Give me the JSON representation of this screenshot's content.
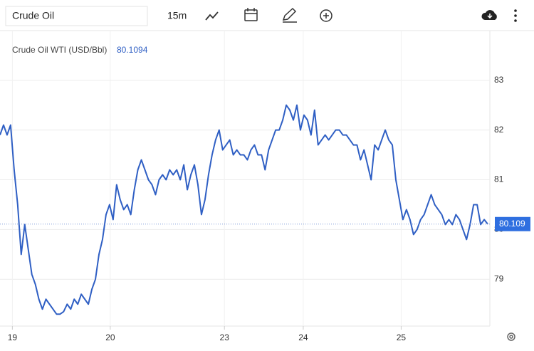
{
  "chart_data": {
    "type": "line",
    "search_text": "Crude Oil",
    "interval": "15m",
    "title": "Crude Oil WTI (USD/Bbl)",
    "price": 80.1094,
    "price_tag": {
      "value": 80.1094,
      "label": "80.109"
    },
    "series": [
      {
        "name": "Crude Oil WTI (USD/Bbl)",
        "color": "#2f5fc4",
        "values": [
          81.9,
          82.1,
          81.9,
          82.1,
          81.2,
          80.5,
          79.5,
          80.1,
          79.6,
          79.1,
          78.9,
          78.6,
          78.4,
          78.6,
          78.5,
          78.4,
          78.3,
          78.3,
          78.35,
          78.5,
          78.4,
          78.6,
          78.5,
          78.7,
          78.6,
          78.5,
          78.8,
          79.0,
          79.5,
          79.8,
          80.3,
          80.5,
          80.2,
          80.9,
          80.6,
          80.4,
          80.5,
          80.3,
          80.8,
          81.2,
          81.4,
          81.2,
          81.0,
          80.9,
          80.7,
          81.0,
          81.1,
          81.0,
          81.2,
          81.1,
          81.2,
          81.0,
          81.3,
          80.8,
          81.1,
          81.3,
          80.9,
          80.3,
          80.6,
          81.1,
          81.5,
          81.8,
          82.0,
          81.6,
          81.7,
          81.8,
          81.5,
          81.6,
          81.5,
          81.5,
          81.4,
          81.6,
          81.7,
          81.5,
          81.5,
          81.2,
          81.6,
          81.8,
          82.0,
          82.0,
          82.2,
          82.5,
          82.4,
          82.2,
          82.5,
          82.0,
          82.3,
          82.2,
          81.9,
          82.4,
          81.7,
          81.8,
          81.9,
          81.8,
          81.9,
          82.0,
          82.0,
          81.9,
          81.9,
          81.8,
          81.7,
          81.7,
          81.4,
          81.6,
          81.3,
          81.0,
          81.7,
          81.6,
          81.8,
          82.0,
          81.8,
          81.7,
          81.0,
          80.6,
          80.2,
          80.4,
          80.2,
          79.9,
          80.0,
          80.2,
          80.3,
          80.5,
          80.7,
          80.5,
          80.4,
          80.3,
          80.1,
          80.2,
          80.1,
          80.3,
          80.2,
          80.0,
          79.8,
          80.1,
          80.5,
          80.5,
          80.1,
          80.2,
          80.1094
        ]
      }
    ],
    "xlim": [
      0,
      138.6
    ],
    "xticks": [
      {
        "value": 3.5,
        "label": "19"
      },
      {
        "value": 31.2,
        "label": "20"
      },
      {
        "value": 63.5,
        "label": "23"
      },
      {
        "value": 85.8,
        "label": "24"
      },
      {
        "value": 113.5,
        "label": "25"
      }
    ],
    "ylim": [
      78.06,
      84.04
    ],
    "yticks": [
      79,
      80,
      81,
      82,
      83
    ],
    "grid": true
  }
}
